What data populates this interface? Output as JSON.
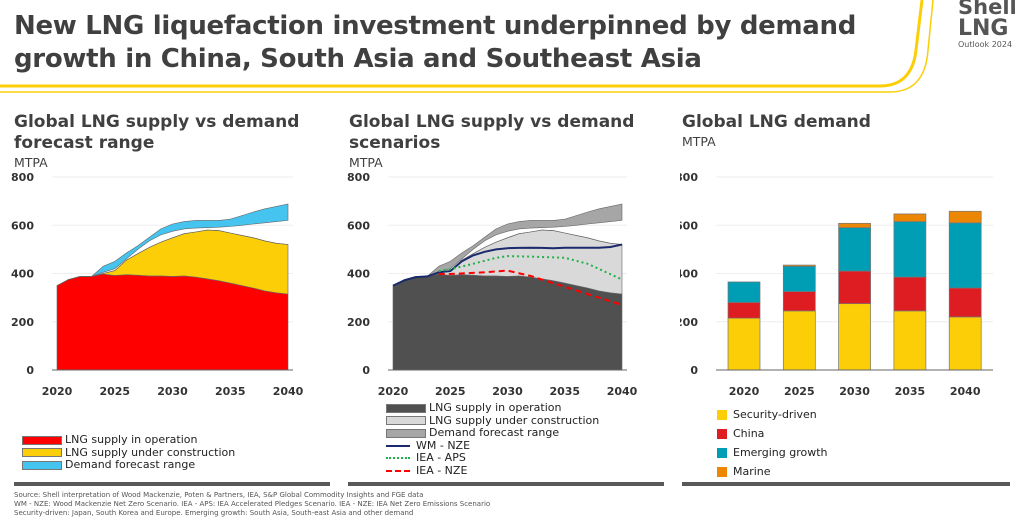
{
  "title": {
    "line1": "New LNG liquefaction investment underpinned by demand",
    "line2": "growth in China, South Asia and Southeast Asia"
  },
  "logo": {
    "line1": "Shell",
    "line2": "LNG",
    "line3": "Outlook 2024"
  },
  "colors": {
    "brand_yellow": "#fbce07"
  },
  "footer": {
    "line1": "Source: Shell interpretation of Wood Mackenzie, Poten & Partners, IEA, S&P Global Commodity Insights and FGE data",
    "line2": "WM - NZE: Wood Mackenzie Net Zero Scenario. IEA - APS: IEA Accelerated Pledges Scenario. IEA - NZE: IEA Net Zero Emissions Scenario",
    "line3": "Security-driven: Japan, South Korea and Europe. Emerging growth: South Asia, South-east Asia and other demand"
  },
  "chart_data": [
    {
      "type": "area",
      "title": "Global LNG supply vs demand forecast range",
      "ylabel": "MTPA",
      "ylim": [
        0,
        800
      ],
      "yticks": [
        "0",
        "200",
        "400",
        "600",
        "800"
      ],
      "xlim": [
        2020,
        2040
      ],
      "xticks": [
        "2020",
        "2025",
        "2030",
        "2035",
        "2040"
      ],
      "grid": true,
      "legend": "bottom",
      "x": [
        2020,
        2021,
        2022,
        2023,
        2024,
        2025,
        2026,
        2027,
        2028,
        2029,
        2030,
        2031,
        2032,
        2033,
        2034,
        2035,
        2036,
        2037,
        2038,
        2039,
        2040
      ],
      "series": [
        {
          "name": "LNG supply in operation",
          "color": "#ff0000",
          "values": [
            350,
            375,
            388,
            388,
            398,
            392,
            395,
            393,
            390,
            390,
            388,
            390,
            385,
            378,
            370,
            360,
            350,
            340,
            328,
            320,
            315
          ]
        },
        {
          "name": "LNG supply under construction",
          "color": "#fbce07",
          "note_range": "stacked top",
          "values_top": [
            350,
            375,
            388,
            388,
            400,
            412,
            455,
            482,
            508,
            530,
            548,
            565,
            572,
            580,
            578,
            568,
            558,
            548,
            535,
            525,
            520
          ]
        },
        {
          "name": "Demand forecast range",
          "color": "#45c4f0",
          "values_low": [
            350,
            375,
            388,
            388,
            405,
            420,
            460,
            500,
            535,
            560,
            575,
            585,
            588,
            590,
            592,
            595,
            600,
            605,
            610,
            615,
            620
          ],
          "values_high": [
            350,
            375,
            388,
            388,
            430,
            450,
            485,
            515,
            550,
            585,
            605,
            615,
            620,
            620,
            620,
            625,
            640,
            655,
            668,
            678,
            688
          ]
        }
      ]
    },
    {
      "type": "area",
      "title": "Global LNG supply vs demand scenarios",
      "ylabel": "MTPA",
      "ylim": [
        0,
        800
      ],
      "yticks": [
        "0",
        "200",
        "400",
        "600",
        "800"
      ],
      "xlim": [
        2020,
        2040
      ],
      "xticks": [
        "2020",
        "2025",
        "2030",
        "2035",
        "2040"
      ],
      "grid": true,
      "legend": "bottom",
      "x": [
        2020,
        2021,
        2022,
        2023,
        2024,
        2025,
        2026,
        2027,
        2028,
        2029,
        2030,
        2031,
        2032,
        2033,
        2034,
        2035,
        2036,
        2037,
        2038,
        2039,
        2040
      ],
      "series": [
        {
          "name": "LNG supply in operation",
          "color": "#505050",
          "values": [
            350,
            375,
            388,
            388,
            398,
            392,
            395,
            393,
            390,
            390,
            388,
            390,
            385,
            378,
            370,
            360,
            350,
            340,
            328,
            320,
            315
          ]
        },
        {
          "name": "LNG supply under construction",
          "color": "#d9d9d9",
          "values_top": [
            350,
            375,
            388,
            388,
            400,
            412,
            455,
            482,
            508,
            530,
            548,
            565,
            572,
            580,
            578,
            568,
            558,
            548,
            535,
            525,
            520
          ]
        },
        {
          "name": "Demand forecast range",
          "color": "#a6a6a6",
          "values_low": [
            350,
            375,
            388,
            388,
            405,
            420,
            460,
            500,
            535,
            560,
            575,
            585,
            588,
            590,
            592,
            595,
            600,
            605,
            610,
            615,
            620
          ],
          "values_high": [
            350,
            375,
            388,
            388,
            430,
            450,
            485,
            515,
            550,
            585,
            605,
            615,
            620,
            620,
            620,
            625,
            640,
            655,
            668,
            678,
            688
          ]
        },
        {
          "name": "WM - NZE",
          "color": "#1a2a6c",
          "style": "solid",
          "values": [
            350,
            372,
            385,
            388,
            405,
            410,
            450,
            475,
            490,
            500,
            505,
            506,
            507,
            506,
            505,
            507,
            507,
            507,
            507,
            510,
            520
          ]
        },
        {
          "name": "IEA - APS",
          "color": "#1fb24a",
          "style": "dotted",
          "x": [
            2024,
            2025,
            2027,
            2029,
            2030,
            2032,
            2035,
            2037,
            2040
          ],
          "values": [
            410,
            418,
            440,
            465,
            472,
            470,
            465,
            440,
            375
          ]
        },
        {
          "name": "IEA - NZE",
          "color": "#ff0000",
          "style": "dashed",
          "x": [
            2024,
            2025,
            2028,
            2030,
            2032,
            2035,
            2040
          ],
          "values": [
            398,
            398,
            405,
            412,
            390,
            345,
            270
          ]
        }
      ]
    },
    {
      "type": "bar",
      "stacked": true,
      "title": "Global LNG demand",
      "ylabel": "MTPA",
      "ylim": [
        0,
        800
      ],
      "yticks": [
        "0",
        "200",
        "400",
        "600",
        "800"
      ],
      "categories": [
        "2020",
        "2025",
        "2030",
        "2035",
        "2040"
      ],
      "grid": true,
      "legend": "bottom",
      "series": [
        {
          "name": "Security-driven",
          "color": "#fbce07",
          "values": [
            215,
            245,
            275,
            245,
            220
          ]
        },
        {
          "name": "China",
          "color": "#dd1d21",
          "values": [
            65,
            80,
            135,
            140,
            120
          ]
        },
        {
          "name": "Emerging growth",
          "color": "#009eb4",
          "values": [
            85,
            105,
            180,
            230,
            270
          ]
        },
        {
          "name": "Marine",
          "color": "#eb8705",
          "values": [
            0,
            5,
            18,
            32,
            48
          ]
        }
      ]
    }
  ]
}
